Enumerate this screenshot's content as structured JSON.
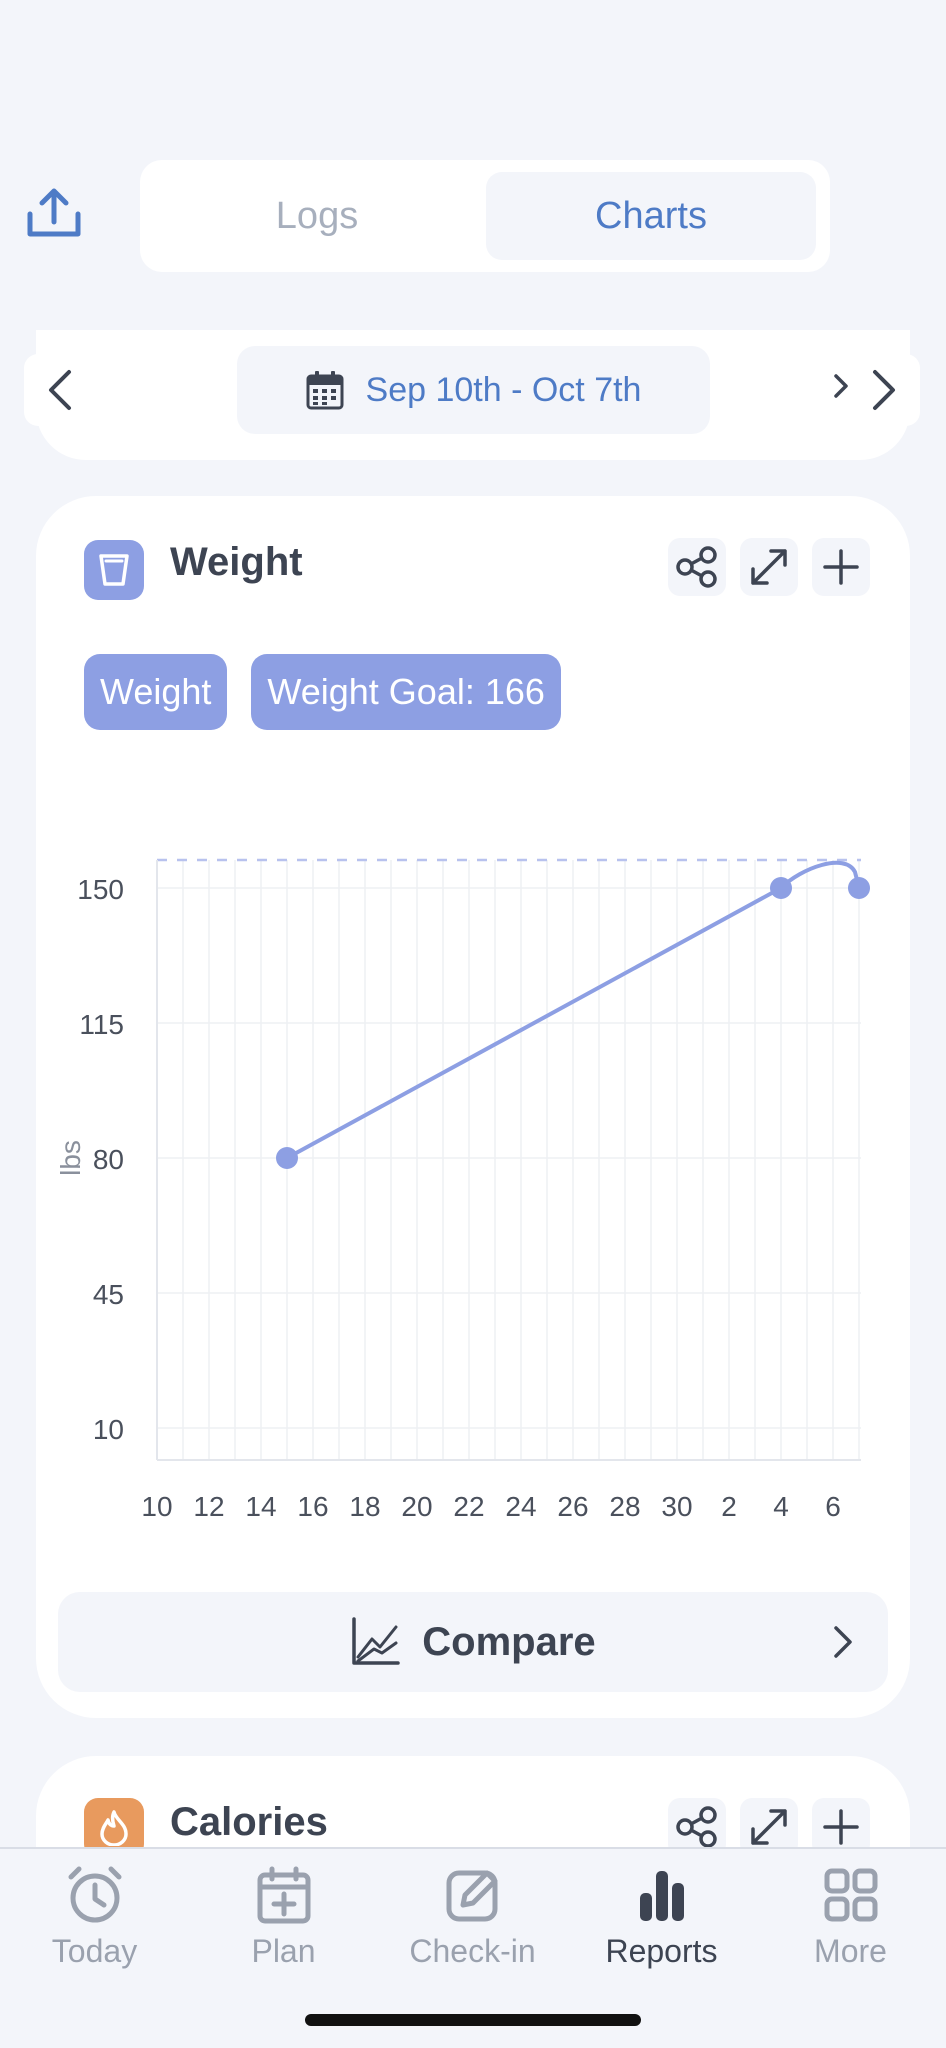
{
  "header": {
    "share_icon": "share-upload-icon"
  },
  "segments": [
    {
      "label": "Logs",
      "active": false
    },
    {
      "label": "Charts",
      "active": true
    }
  ],
  "date_range": {
    "label": "Sep 10th - Oct 7th",
    "icon": "calendar-icon"
  },
  "weight_card": {
    "title": "Weight",
    "icon": "scale-icon",
    "tools": [
      "share-icon",
      "expand-icon",
      "plus-icon"
    ],
    "chips": [
      "Weight",
      "Weight Goal: 166"
    ],
    "compare_label": "Compare"
  },
  "calories_card": {
    "title": "Calories",
    "icon": "flame-icon"
  },
  "tabs": [
    {
      "label": "Today",
      "icon": "clock-icon",
      "active": false
    },
    {
      "label": "Plan",
      "icon": "calendar-plus-icon",
      "active": false
    },
    {
      "label": "Check-in",
      "icon": "edit-icon",
      "active": false
    },
    {
      "label": "Reports",
      "icon": "bar-chart-icon",
      "active": true
    },
    {
      "label": "More",
      "icon": "grid-icon",
      "active": false
    }
  ],
  "colors": {
    "accent": "#4e7bc6",
    "series": "#8d9fe3",
    "calories": "#e89a5e",
    "background": "#f3f5fa"
  },
  "chart_data": {
    "type": "line",
    "ylabel": "lbs",
    "ylim": [
      10,
      166
    ],
    "yticks": [
      10,
      45,
      80,
      115,
      150
    ],
    "xticks": [
      "10",
      "12",
      "14",
      "16",
      "18",
      "20",
      "22",
      "24",
      "26",
      "28",
      "30",
      "2",
      "4",
      "6"
    ],
    "goal": 166,
    "series": [
      {
        "name": "Weight",
        "points": [
          {
            "x": 15,
            "y": 80
          },
          {
            "x": 34,
            "y": 150
          },
          {
            "x": 37,
            "y": 150
          }
        ]
      }
    ]
  }
}
